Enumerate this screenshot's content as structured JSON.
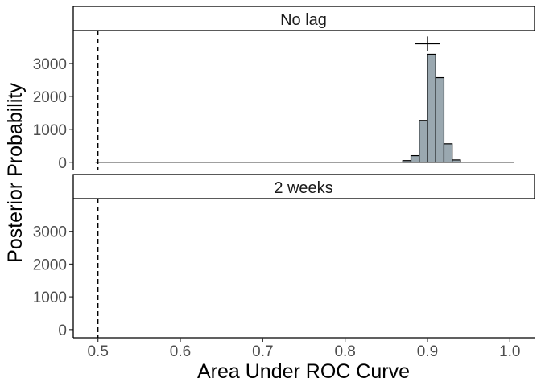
{
  "chart_data": {
    "type": "bar",
    "subtype": "faceted-histogram",
    "xlabel": "Area Under ROC Curve",
    "ylabel": "Posterior Probability",
    "xlim": [
      0.47,
      1.03
    ],
    "ylim": [
      -250,
      4000
    ],
    "x_ticks": [
      "0.5",
      "0.6",
      "0.7",
      "0.8",
      "0.9",
      "1.0"
    ],
    "y_ticks": [
      "0",
      "1000",
      "2000",
      "3000"
    ],
    "reference_line_x": 0.5,
    "grid": false,
    "bar_color": "#9aa8b0",
    "bar_outline": "#000000",
    "panels": [
      {
        "label": "No lag",
        "summary_point": {
          "x": 0.9,
          "y": 3600,
          "ci": [
            0.885,
            0.915
          ]
        },
        "bins": [
          {
            "x": 0.875,
            "value": 50
          },
          {
            "x": 0.885,
            "value": 200
          },
          {
            "x": 0.895,
            "value": 1270
          },
          {
            "x": 0.905,
            "value": 3280
          },
          {
            "x": 0.915,
            "value": 2570
          },
          {
            "x": 0.925,
            "value": 560
          },
          {
            "x": 0.935,
            "value": 70
          }
        ]
      },
      {
        "label": "2 weeks",
        "summary_point": null,
        "bins": []
      }
    ]
  }
}
